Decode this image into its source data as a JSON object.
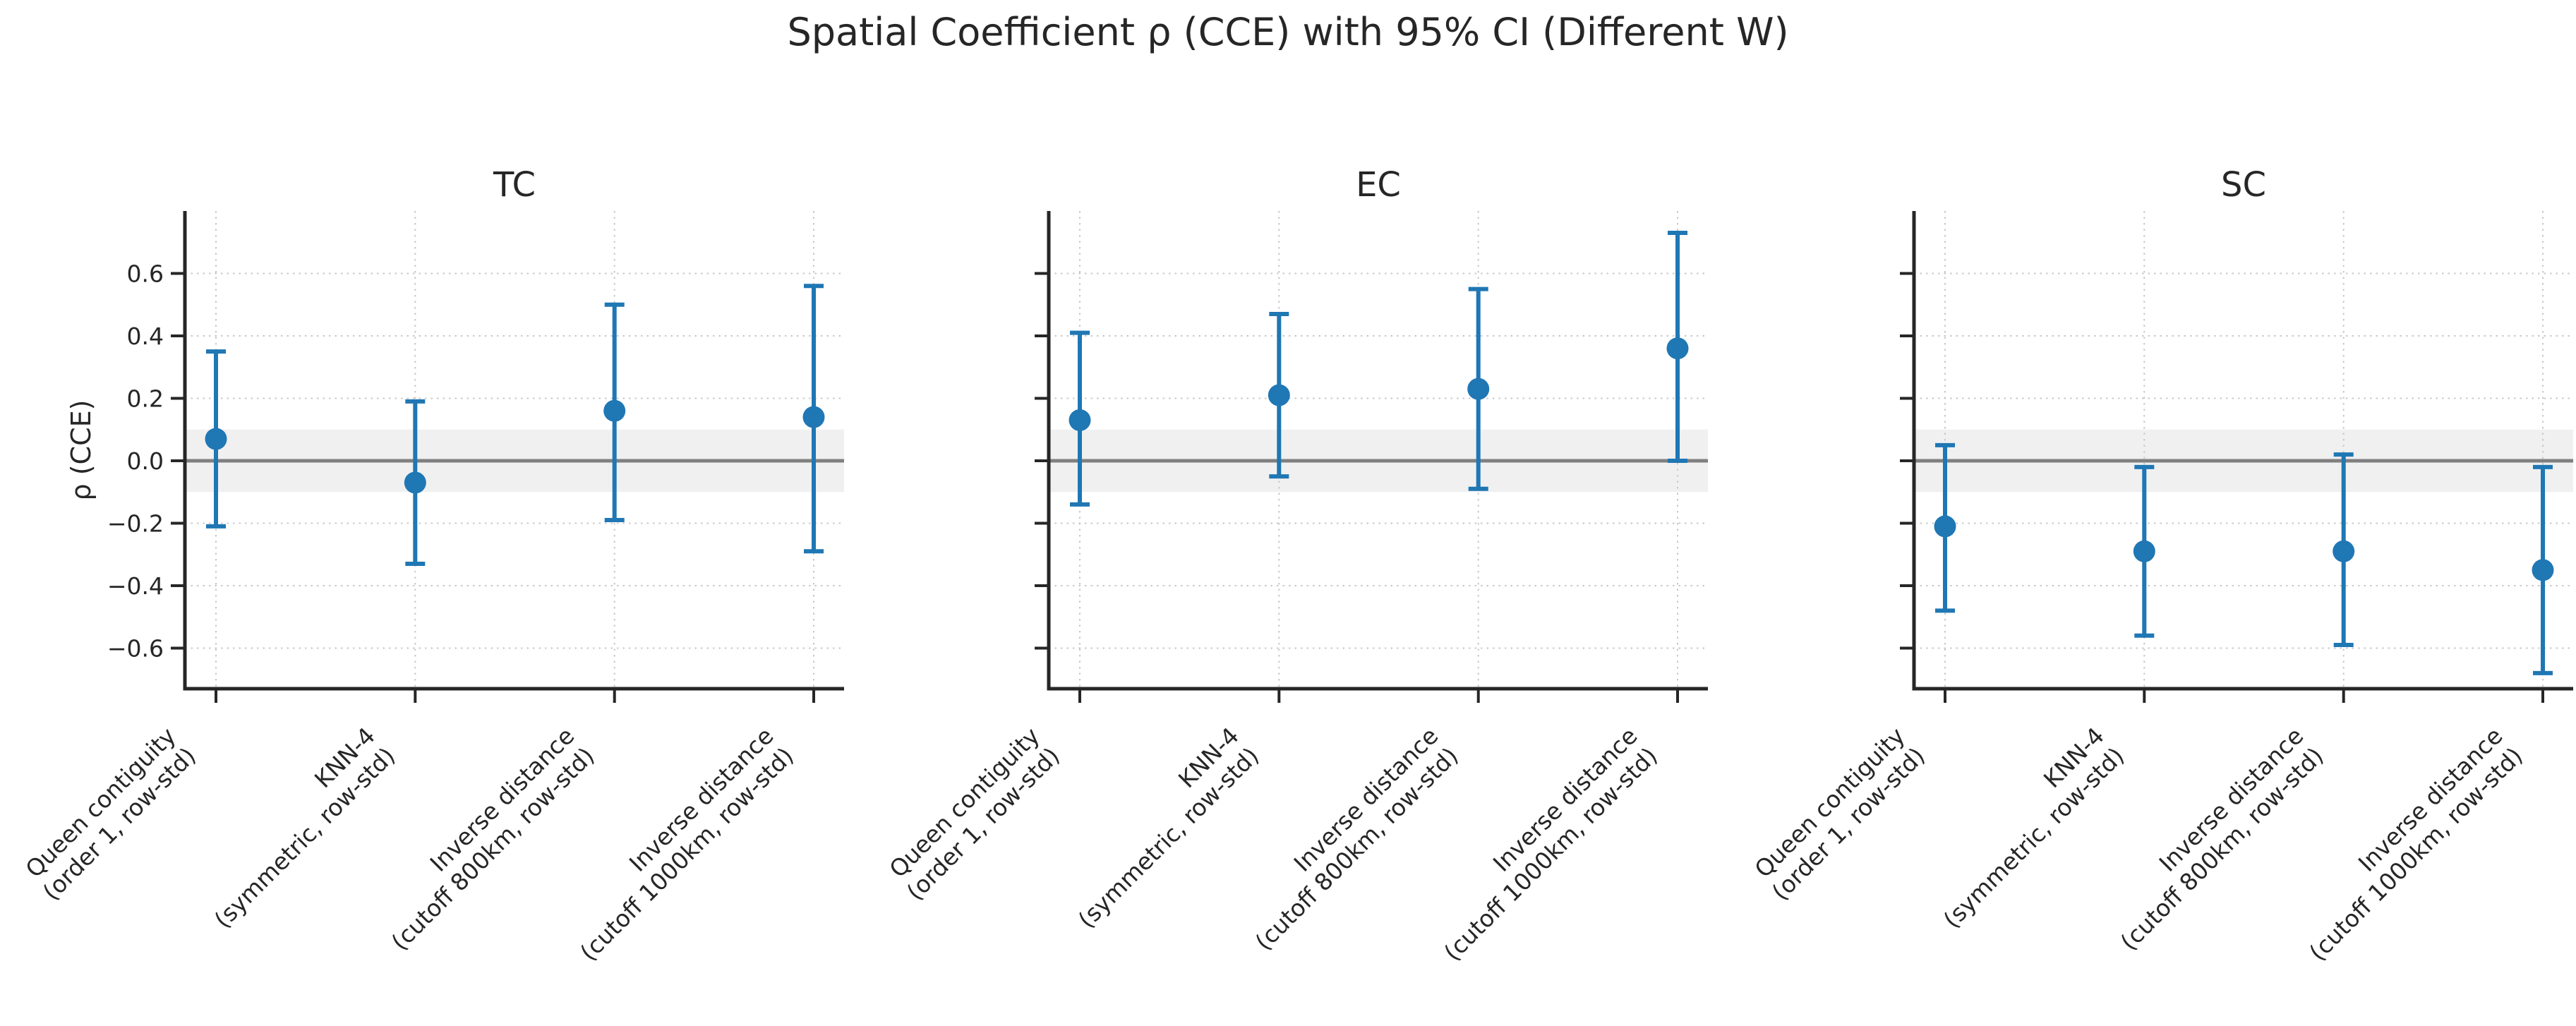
{
  "figure": {
    "title": "Spatial Coefficient ρ (CCE) with 95% CI (Different W)",
    "ylabel": "ρ (CCE)"
  },
  "chart_data": {
    "type": "scatter",
    "subtype": "point-estimates-with-95ci-errorbars",
    "title": "Spatial Coefficient ρ (CCE) with 95% CI (Different W)",
    "xlabel": "",
    "ylabel": "ρ (CCE)",
    "ylim": [
      -0.73,
      0.8
    ],
    "yticks": [
      0.6,
      0.4,
      0.2,
      0.0,
      -0.2,
      -0.4,
      -0.6
    ],
    "ytick_labels": [
      "0.6",
      "0.4",
      "0.2",
      "0.0",
      "−0.2",
      "−0.4",
      "−0.6"
    ],
    "grid": "dotted, both axes",
    "legend": "none",
    "zero_line": 0.0,
    "shaded_band": [
      -0.1,
      0.1
    ],
    "categories": [
      "Queen contiguity\n(order 1, row-std)",
      "KNN-4\n(symmetric, row-std)",
      "Inverse distance\n(cutoff 800km, row-std)",
      "Inverse distance\n(cutoff 1000km, row-std)"
    ],
    "panels": [
      {
        "title": "TC",
        "rho": [
          0.07,
          -0.07,
          0.16,
          0.14
        ],
        "ci_low": [
          -0.21,
          -0.33,
          -0.19,
          -0.29
        ],
        "ci_high": [
          0.35,
          0.19,
          0.5,
          0.56
        ]
      },
      {
        "title": "EC",
        "rho": [
          0.13,
          0.21,
          0.23,
          0.36
        ],
        "ci_low": [
          -0.14,
          -0.05,
          -0.09,
          0.0
        ],
        "ci_high": [
          0.41,
          0.47,
          0.55,
          0.73
        ]
      },
      {
        "title": "SC",
        "rho": [
          -0.21,
          -0.29,
          -0.29,
          -0.35
        ],
        "ci_low": [
          -0.48,
          -0.56,
          -0.59,
          -0.68
        ],
        "ci_high": [
          0.05,
          -0.02,
          0.02,
          -0.02
        ]
      }
    ]
  },
  "style": {
    "marker_color": "#1f77b4",
    "zero_line_color": "#808080",
    "band_color": "#808080",
    "band_opacity": "0.12",
    "grid_color": "#c8c8c8",
    "spine_color": "#262626",
    "text_color": "#262626",
    "background": "#ffffff"
  }
}
